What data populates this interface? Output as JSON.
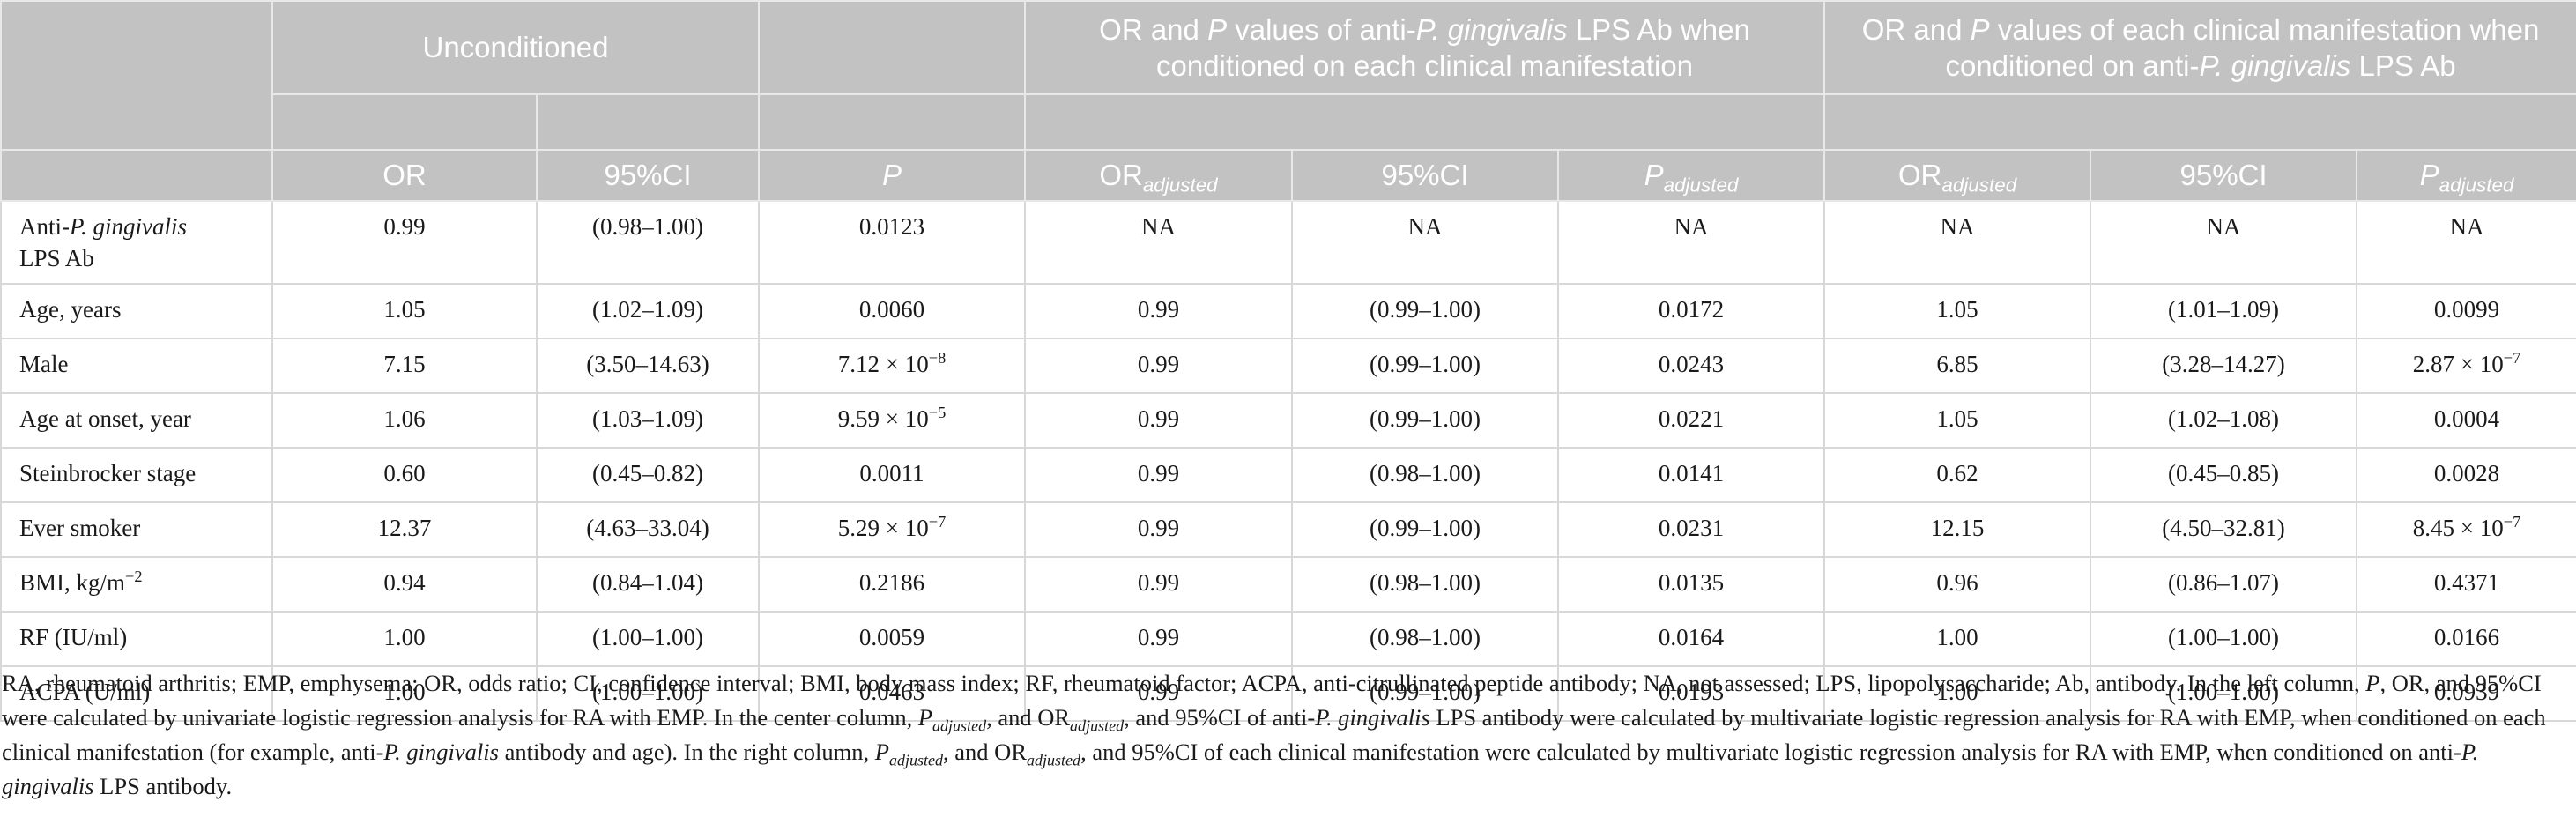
{
  "header": {
    "group_unconditioned": "Unconditioned",
    "group_center": [
      "OR and ",
      "P",
      " values of anti-",
      "P. gingivalis",
      " LPS Ab when conditioned on each clinical manifestation"
    ],
    "group_right": [
      "OR and ",
      "P",
      " values of each clinical manifestation when conditioned on anti-",
      "P. gingivalis",
      " LPS Ab"
    ],
    "columns": {
      "or": "OR",
      "ci": "95%CI",
      "p": "P",
      "or_adj_base": "OR",
      "adj_sub": "adjusted",
      "p_adj_base": "P"
    }
  },
  "rows": [
    {
      "label": [
        "Anti-",
        "P. gingivalis",
        " LPS Ab"
      ],
      "or": "0.99",
      "ci": "(0.98–1.00)",
      "p": "0.0123",
      "or_adj_c": "NA",
      "ci_adj_c": "NA",
      "p_adj_c": "NA",
      "or_adj_r": "NA",
      "ci_adj_r": "NA",
      "p_adj_r": "NA"
    },
    {
      "label": [
        "Age, years"
      ],
      "or": "1.05",
      "ci": "(1.02–1.09)",
      "p": "0.0060",
      "or_adj_c": "0.99",
      "ci_adj_c": "(0.99–1.00)",
      "p_adj_c": "0.0172",
      "or_adj_r": "1.05",
      "ci_adj_r": "(1.01–1.09)",
      "p_adj_r": "0.0099"
    },
    {
      "label": [
        "Male"
      ],
      "or": "7.15",
      "ci": "(3.50–14.63)",
      "p": [
        "7.12 × 10",
        "−8"
      ],
      "or_adj_c": "0.99",
      "ci_adj_c": "(0.99–1.00)",
      "p_adj_c": "0.0243",
      "or_adj_r": "6.85",
      "ci_adj_r": "(3.28–14.27)",
      "p_adj_r": [
        "2.87 × 10",
        "−7"
      ]
    },
    {
      "label": [
        "Age at onset, year"
      ],
      "or": "1.06",
      "ci": "(1.03–1.09)",
      "p": [
        "9.59 × 10",
        "−5"
      ],
      "or_adj_c": "0.99",
      "ci_adj_c": "(0.99–1.00)",
      "p_adj_c": "0.0221",
      "or_adj_r": "1.05",
      "ci_adj_r": "(1.02–1.08)",
      "p_adj_r": "0.0004"
    },
    {
      "label": [
        "Steinbrocker stage"
      ],
      "or": "0.60",
      "ci": "(0.45–0.82)",
      "p": "0.0011",
      "or_adj_c": "0.99",
      "ci_adj_c": "(0.98–1.00)",
      "p_adj_c": "0.0141",
      "or_adj_r": "0.62",
      "ci_adj_r": "(0.45–0.85)",
      "p_adj_r": "0.0028"
    },
    {
      "label": [
        "Ever smoker"
      ],
      "or": "12.37",
      "ci": "(4.63–33.04)",
      "p": [
        "5.29 × 10",
        "−7"
      ],
      "or_adj_c": "0.99",
      "ci_adj_c": "(0.99–1.00)",
      "p_adj_c": "0.0231",
      "or_adj_r": "12.15",
      "ci_adj_r": "(4.50–32.81)",
      "p_adj_r": [
        "8.45 × 10",
        "−7"
      ]
    },
    {
      "label": [
        "BMI, kg/m",
        "−2"
      ],
      "or": "0.94",
      "ci": "(0.84–1.04)",
      "p": "0.2186",
      "or_adj_c": "0.99",
      "ci_adj_c": "(0.98–1.00)",
      "p_adj_c": "0.0135",
      "or_adj_r": "0.96",
      "ci_adj_r": "(0.86–1.07)",
      "p_adj_r": "0.4371"
    },
    {
      "label": [
        "RF (IU/ml)"
      ],
      "or": "1.00",
      "ci": "(1.00–1.00)",
      "p": "0.0059",
      "or_adj_c": "0.99",
      "ci_adj_c": "(0.98–1.00)",
      "p_adj_c": "0.0164",
      "or_adj_r": "1.00",
      "ci_adj_r": "(1.00–1.00)",
      "p_adj_r": "0.0166"
    },
    {
      "label": [
        "ACPA (U/ml)"
      ],
      "or": "1.00",
      "ci": "(1.00–1.00)",
      "p": "0.0463",
      "or_adj_c": "0.99",
      "ci_adj_c": "(0.99–1.00)",
      "p_adj_c": "0.0193",
      "or_adj_r": "1.00",
      "ci_adj_r": "(1.00–1.00)",
      "p_adj_r": "0.0939"
    }
  ],
  "footnote": {
    "s1": "RA, rheumatoid arthritis; EMP, emphysema; OR, odds ratio; CI, confidence interval; BMI, body mass index; RF, rheumatoid factor; ACPA, anti-citrullinated peptide antibody; NA, not assessed; LPS, lipopolysaccharide; Ab, antibody. In the left column, ",
    "s2": "P",
    "s3": ", OR, and 95%CI were calculated by univariate logistic regression analysis for RA with EMP. In the center column, ",
    "s4": "P",
    "s5": "adjusted",
    "s6": ", and OR",
    "s7": "adjusted",
    "s8": ", and 95%CI of anti-",
    "s9": "P. gingivalis",
    "s10": " LPS antibody were calculated by multivariate logistic regression analysis for RA with EMP, when conditioned on each clinical manifestation (for example, anti-",
    "s11": "P. gingivalis",
    "s12": " antibody and age). In the right column, ",
    "s13": "P",
    "s14": "adjusted",
    "s15": ", and OR",
    "s16": "adjusted",
    "s17": ", and 95%CI of each clinical manifestation were calculated by multivariate logistic regression analysis for RA with EMP, when conditioned on anti-",
    "s18": "P. gingivalis",
    "s19": " LPS antibody."
  }
}
